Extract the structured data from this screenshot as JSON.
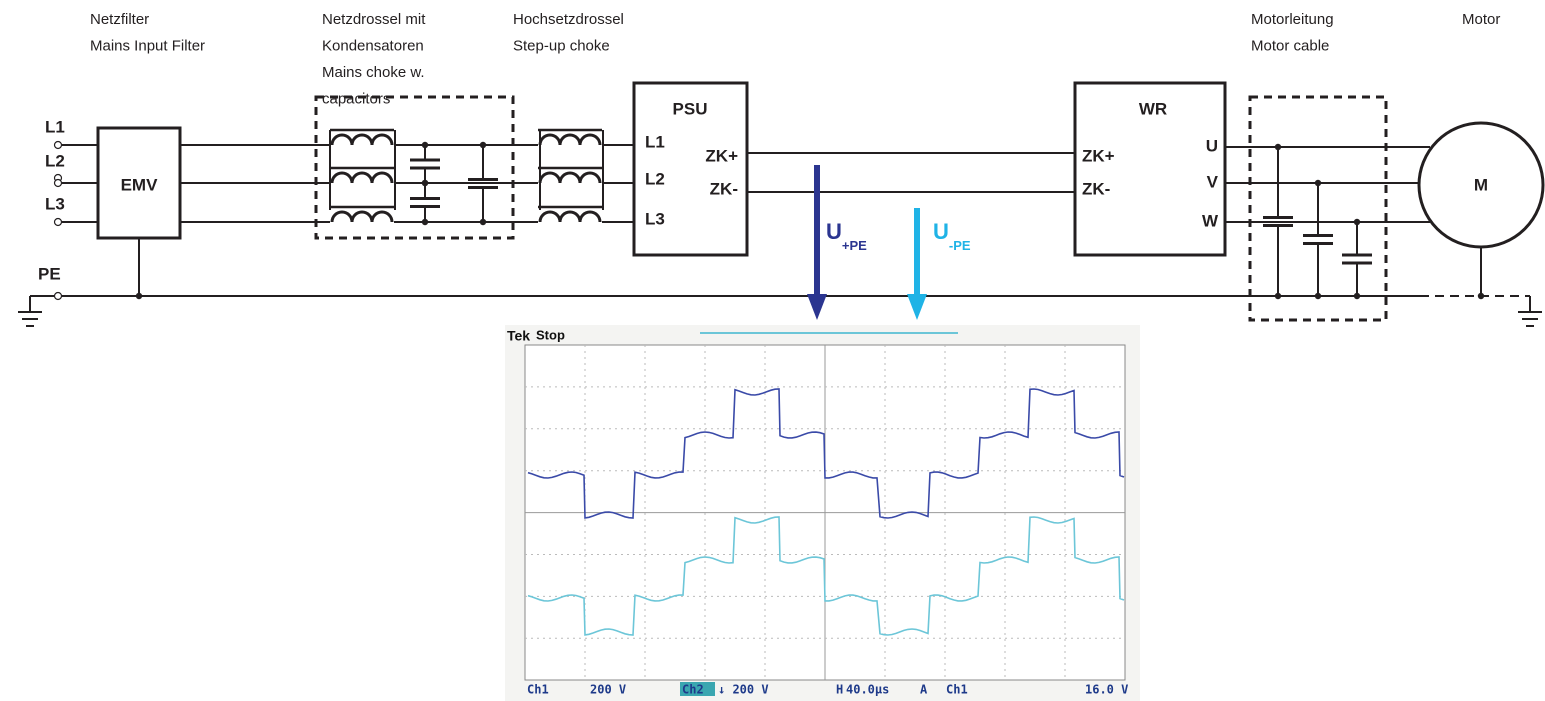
{
  "header_labels": [
    {
      "lines": [
        "Netzfilter",
        "Mains Input Filter"
      ]
    },
    {
      "lines": [
        "Netzdrossel mit",
        "Kondensatoren",
        "Mains choke w.",
        "capacitors"
      ]
    },
    {
      "lines": [
        "Hochsetzdrossel",
        "Step-up choke"
      ]
    },
    {
      "lines": [
        "Motorleitung",
        "Motor cable"
      ]
    },
    {
      "lines": [
        "Motor"
      ]
    }
  ],
  "inputs": [
    "L1",
    "L2",
    "L3"
  ],
  "pe": "PE",
  "blocks": {
    "emv": "EMV",
    "psu": {
      "title": "PSU",
      "inputs": [
        "L1",
        "L2",
        "L3"
      ],
      "outputs": [
        "ZK+",
        "ZK-"
      ]
    },
    "wr": {
      "title": "WR",
      "inputs": [
        "ZK+",
        "ZK-"
      ],
      "outputs": [
        "U",
        "V",
        "W"
      ]
    },
    "motor": "M"
  },
  "voltages": [
    {
      "main": "U",
      "sub": "+PE"
    },
    {
      "main": "U",
      "sub": "-PE"
    }
  ],
  "scope": {
    "brand": "Tek",
    "state": "Stop",
    "status": [
      "Ch1",
      "200 V",
      "Ch2",
      "↓ 200 V",
      "H",
      "40.0µs",
      "A",
      "Ch1",
      "16.0 V"
    ]
  }
}
